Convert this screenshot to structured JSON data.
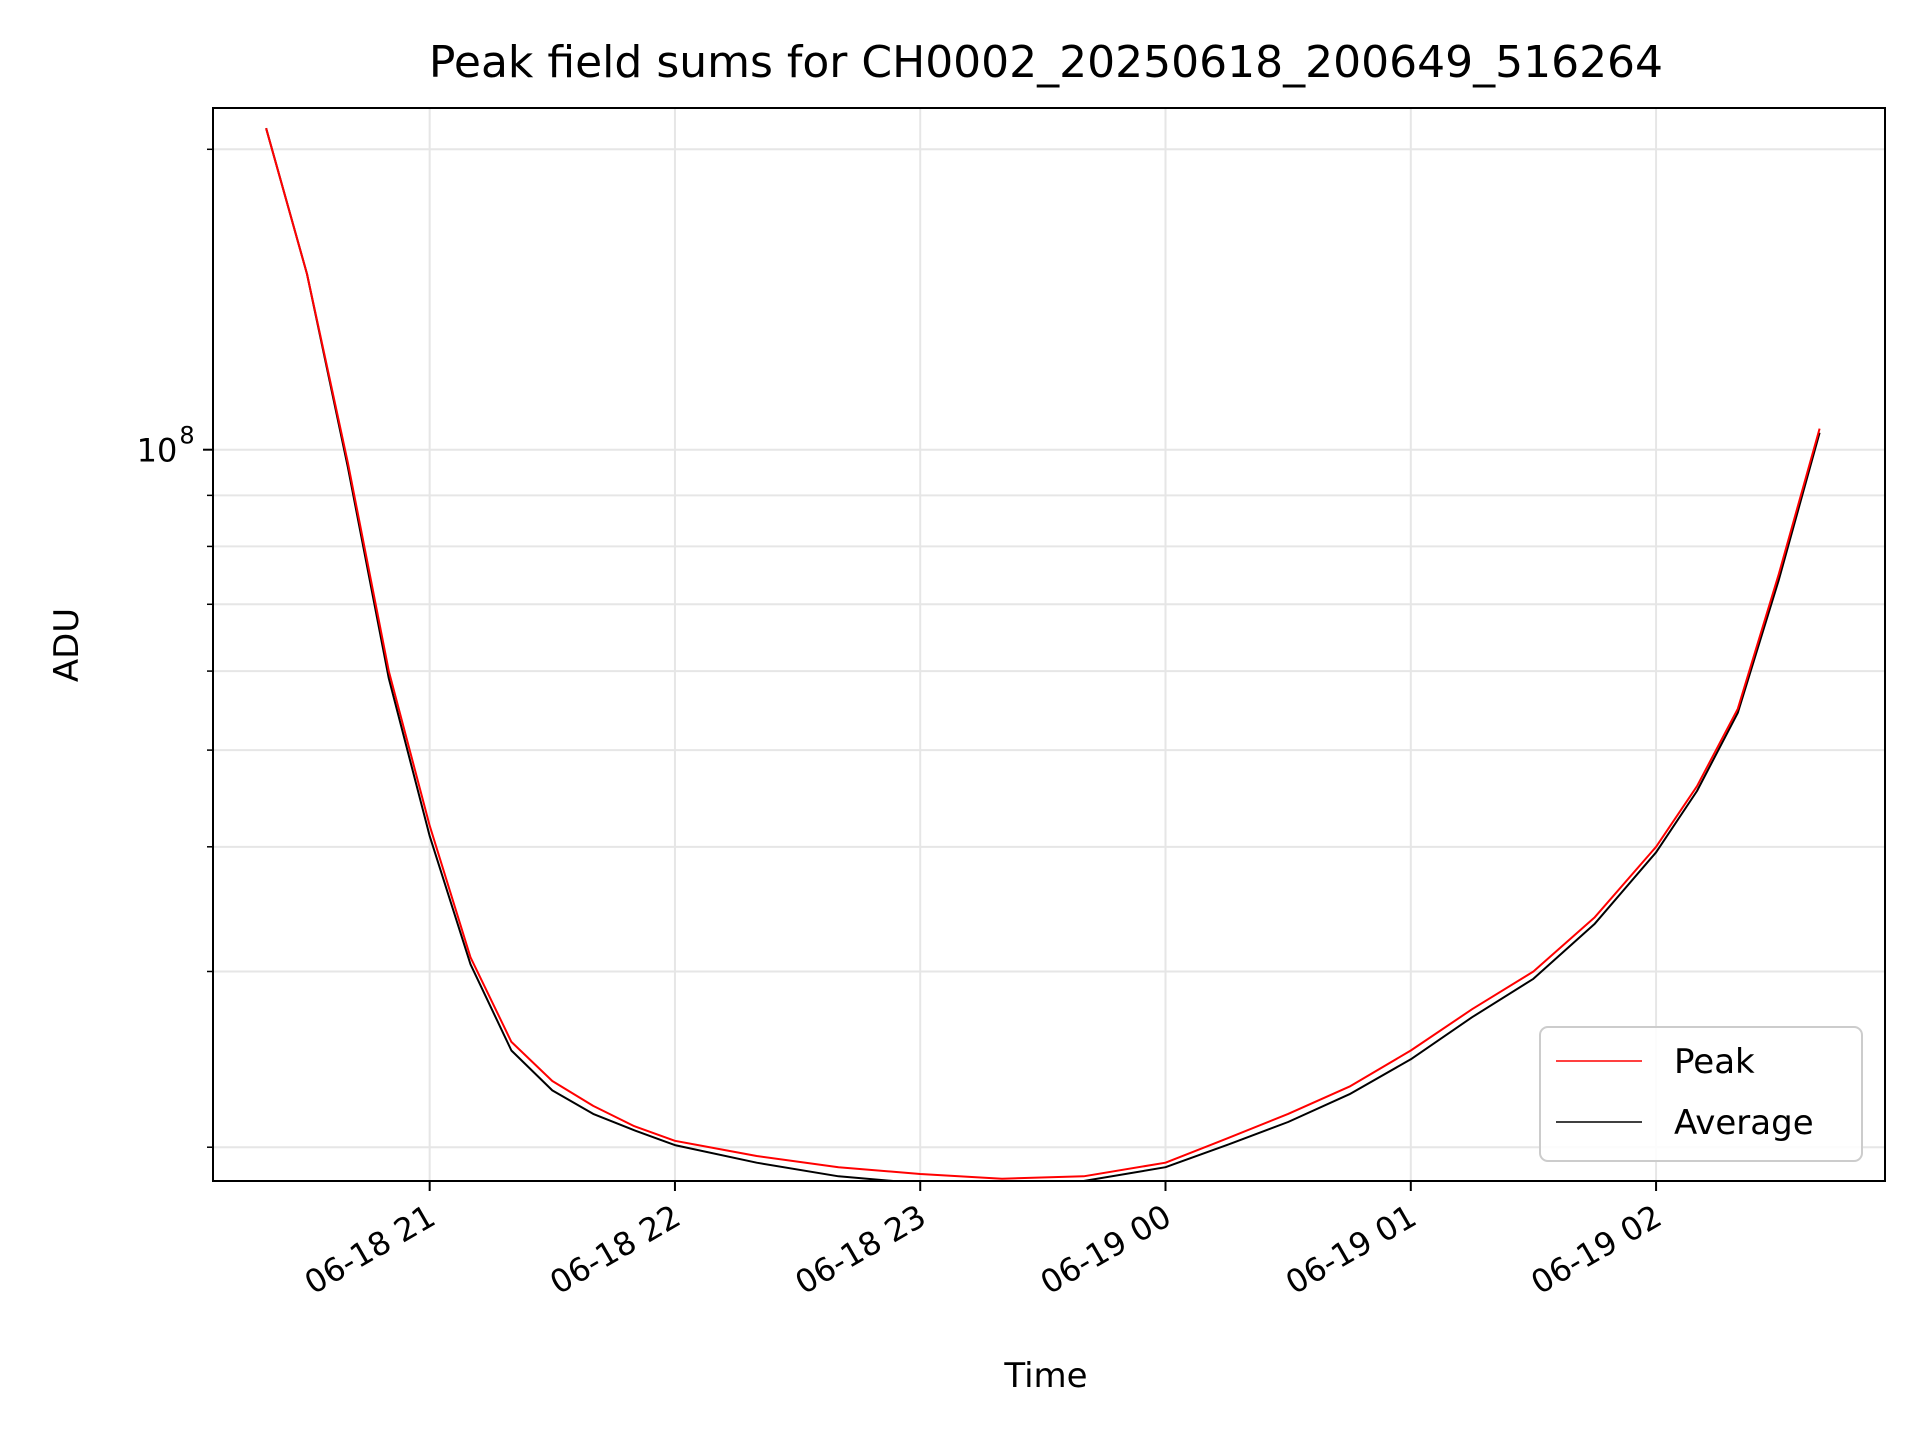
{
  "chart_data": {
    "type": "line",
    "title": "Peak field sums for CH0002_20250618_200649_516264",
    "xlabel": "Time",
    "ylabel": "ADU",
    "y_scale": "log",
    "ylim": [
      18500000,
      220000000
    ],
    "xlim": [
      "2025-06-18 20:07",
      "2025-06-19 02:56"
    ],
    "grid": true,
    "legend_position": "bottom-right",
    "x_ticks": [
      {
        "label": "06-18 21",
        "time": "2025-06-18 21:00"
      },
      {
        "label": "06-18 22",
        "time": "2025-06-18 22:00"
      },
      {
        "label": "06-18 23",
        "time": "2025-06-18 23:00"
      },
      {
        "label": "06-19 00",
        "time": "2025-06-19 00:00"
      },
      {
        "label": "06-19 01",
        "time": "2025-06-19 01:00"
      },
      {
        "label": "06-19 02",
        "time": "2025-06-19 02:00"
      }
    ],
    "y_major_ticks": [
      {
        "value": 100000000,
        "base": "10",
        "exp": "8"
      }
    ],
    "y_minor_ticks": [
      20000000,
      30000000,
      40000000,
      50000000,
      60000000,
      70000000,
      80000000,
      90000000,
      200000000
    ],
    "series": [
      {
        "name": "Peak",
        "color": "#ff0000",
        "x": [
          "2025-06-18 20:20",
          "2025-06-18 20:30",
          "2025-06-18 20:40",
          "2025-06-18 20:50",
          "2025-06-18 21:00",
          "2025-06-18 21:10",
          "2025-06-18 21:20",
          "2025-06-18 21:30",
          "2025-06-18 21:40",
          "2025-06-18 21:50",
          "2025-06-18 22:00",
          "2025-06-18 22:20",
          "2025-06-18 22:40",
          "2025-06-18 23:00",
          "2025-06-18 23:20",
          "2025-06-18 23:40",
          "2025-06-19 00:00",
          "2025-06-19 00:15",
          "2025-06-19 00:30",
          "2025-06-19 00:45",
          "2025-06-19 01:00",
          "2025-06-19 01:15",
          "2025-06-19 01:30",
          "2025-06-19 01:45",
          "2025-06-19 02:00",
          "2025-06-19 02:10",
          "2025-06-19 02:20",
          "2025-06-19 02:30",
          "2025-06-19 02:40"
        ],
        "values": [
          210000000,
          150000000,
          97000000,
          60000000,
          42000000,
          31000000,
          25500000,
          23300000,
          22000000,
          21000000,
          20300000,
          19600000,
          19100000,
          18800000,
          18600000,
          18700000,
          19300000,
          20400000,
          21600000,
          23000000,
          25000000,
          27500000,
          30000000,
          34000000,
          40000000,
          46000000,
          55000000,
          75000000,
          105000000
        ]
      },
      {
        "name": "Average",
        "color": "#000000",
        "x": [
          "2025-06-18 20:20",
          "2025-06-18 20:30",
          "2025-06-18 20:40",
          "2025-06-18 20:50",
          "2025-06-18 21:00",
          "2025-06-18 21:10",
          "2025-06-18 21:20",
          "2025-06-18 21:30",
          "2025-06-18 21:40",
          "2025-06-18 21:50",
          "2025-06-18 22:00",
          "2025-06-18 22:20",
          "2025-06-18 22:40",
          "2025-06-18 23:00",
          "2025-06-18 23:20",
          "2025-06-18 23:40",
          "2025-06-19 00:00",
          "2025-06-19 00:15",
          "2025-06-19 00:30",
          "2025-06-19 00:45",
          "2025-06-19 01:00",
          "2025-06-19 01:15",
          "2025-06-19 01:30",
          "2025-06-19 01:45",
          "2025-06-19 02:00",
          "2025-06-19 02:10",
          "2025-06-19 02:20",
          "2025-06-19 02:30",
          "2025-06-19 02:40"
        ],
        "values": [
          210000000,
          150000000,
          96000000,
          59000000,
          41000000,
          30500000,
          25000000,
          22800000,
          21600000,
          20800000,
          20100000,
          19300000,
          18700000,
          18400000,
          18300000,
          18500000,
          19100000,
          20100000,
          21200000,
          22600000,
          24500000,
          27000000,
          29500000,
          33500000,
          39500000,
          45500000,
          54500000,
          74000000,
          104000000
        ]
      }
    ]
  }
}
